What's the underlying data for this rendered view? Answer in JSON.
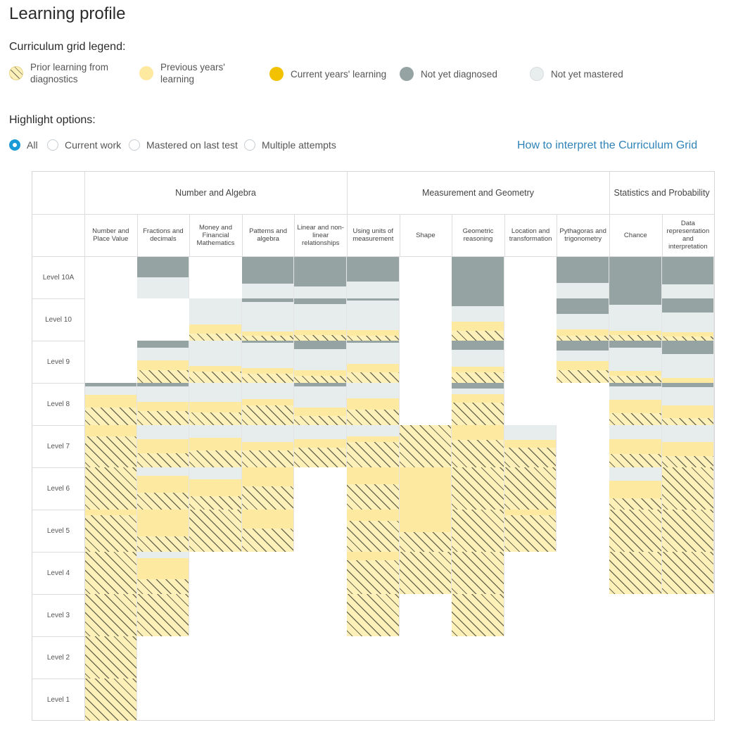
{
  "page": {
    "title": "Learning profile"
  },
  "legend": {
    "heading": "Curriculum grid legend:",
    "items": [
      {
        "key": "prior",
        "label": "Prior learning from diagnostics",
        "line1": "Prior learning from",
        "line2": "diagnostics"
      },
      {
        "key": "prev",
        "label": "Previous years' learning",
        "line1": "Previous years'",
        "line2": "learning"
      },
      {
        "key": "curr",
        "label": "Current years' learning"
      },
      {
        "key": "notdiag",
        "label": "Not yet diagnosed"
      },
      {
        "key": "notmast",
        "label": "Not yet mastered"
      }
    ]
  },
  "colors": {
    "not_yet_diagnosed": "#95a3a3",
    "not_yet_mastered": "#e7ecec",
    "current_years_learning": "#f2c200",
    "previous_years_learning": "#fde9a0",
    "prior_learning": "#fdf0b8",
    "selected_radio": "#1a9ad6",
    "link": "#2f83b8"
  },
  "highlight": {
    "heading": "Highlight options:",
    "selected": "All",
    "options": [
      "All",
      "Current work",
      "Mastered on last test",
      "Multiple attempts"
    ]
  },
  "help_link": "How to interpret the Curriculum Grid",
  "grid": {
    "groups": [
      "Number and Algebra",
      "Measurement and Geometry",
      "Statistics and Probability"
    ],
    "strands": [
      "Number and Place Value",
      "Fractions and decimals",
      "Money and Financial Mathematics",
      "Patterns and algebra",
      "Linear and non-linear relationships",
      "Using units of measurement",
      "Shape",
      "Geometric reasoning",
      "Location and transformation",
      "Pythagoras and trigonometry",
      "Chance",
      "Data representation and interpretation"
    ],
    "levels": [
      "Level 10A",
      "Level 10",
      "Level 9",
      "Level 8",
      "Level 7",
      "Level 6",
      "Level 5",
      "Level 4",
      "Level 3",
      "Level 2",
      "Level 1"
    ],
    "cell_legend": {
      "N": "Not yet diagnosed",
      "M": "Not yet mastered",
      "C": "Current years' learning",
      "P": "Previous years' learning",
      "H": "Prior learning from diagnostics"
    },
    "cells": [
      [
        "",
        "N50M50",
        "",
        "N65M35",
        "N72M28",
        "N60M40",
        "",
        "N100",
        "",
        "N63M37",
        "N100",
        "N66M34"
      ],
      [
        "",
        "",
        "M62P21H17",
        "N8M70P10H12",
        "N13M62P12H13",
        "N5M70P13H12",
        "",
        "N18M37P22H23",
        "",
        "N37M37P14H12",
        "N15M62P10H13",
        "N33M47P10H10"
      ],
      [
        "",
        "N17M30P23H30",
        "M60P13H27",
        "N5M60P13H22",
        "N20M50P13H17",
        "N5M50P20H25",
        "",
        "N22M40P13H25",
        "",
        "N23M25P22H30",
        "N17M55P12H16",
        "N32M57P11"
      ],
      [
        "N8M20P30H42",
        "N8M37P22H33",
        "M45P25H30",
        "M38P16H46",
        "N8M50P20H22",
        "M37P27H36",
        "",
        "N13M13P20H54",
        "",
        "",
        "N8M32P32H28",
        "N10M43P30H17"
      ],
      [
        "P27H73",
        "M33P33H34",
        "M30P30H40",
        "M40P20H40",
        "M33P20H47",
        "M27P13H60",
        "H100",
        "P35H65",
        "M35P18H47",
        "",
        "M33P35H32",
        "M40P33H27"
      ],
      [
        "H100",
        "M20P40H40",
        "M28P40H32",
        "P45H55",
        "",
        "P40H60",
        "P100",
        "H100",
        "H100",
        "",
        "M32P42H26",
        "H100"
      ],
      [
        "P13H87",
        "P63H37",
        "H100",
        "P45H55",
        "",
        "P27H73",
        "P53H47",
        "H100",
        "P13H87",
        "",
        "H100",
        "H100"
      ],
      [
        "H100",
        "M15P50H35",
        "",
        "",
        "",
        "P20H80",
        "H100",
        "H100",
        "",
        "",
        "H100",
        "H100"
      ],
      [
        "H100",
        "H100",
        "",
        "",
        "",
        "H100",
        "",
        "H100",
        "",
        "",
        "",
        ""
      ],
      [
        "H100",
        "",
        "",
        "",
        "",
        "",
        "",
        "",
        "",
        "",
        "",
        ""
      ],
      [
        "H100",
        "",
        "",
        "",
        "",
        "",
        "",
        "",
        "",
        "",
        "",
        ""
      ]
    ]
  }
}
